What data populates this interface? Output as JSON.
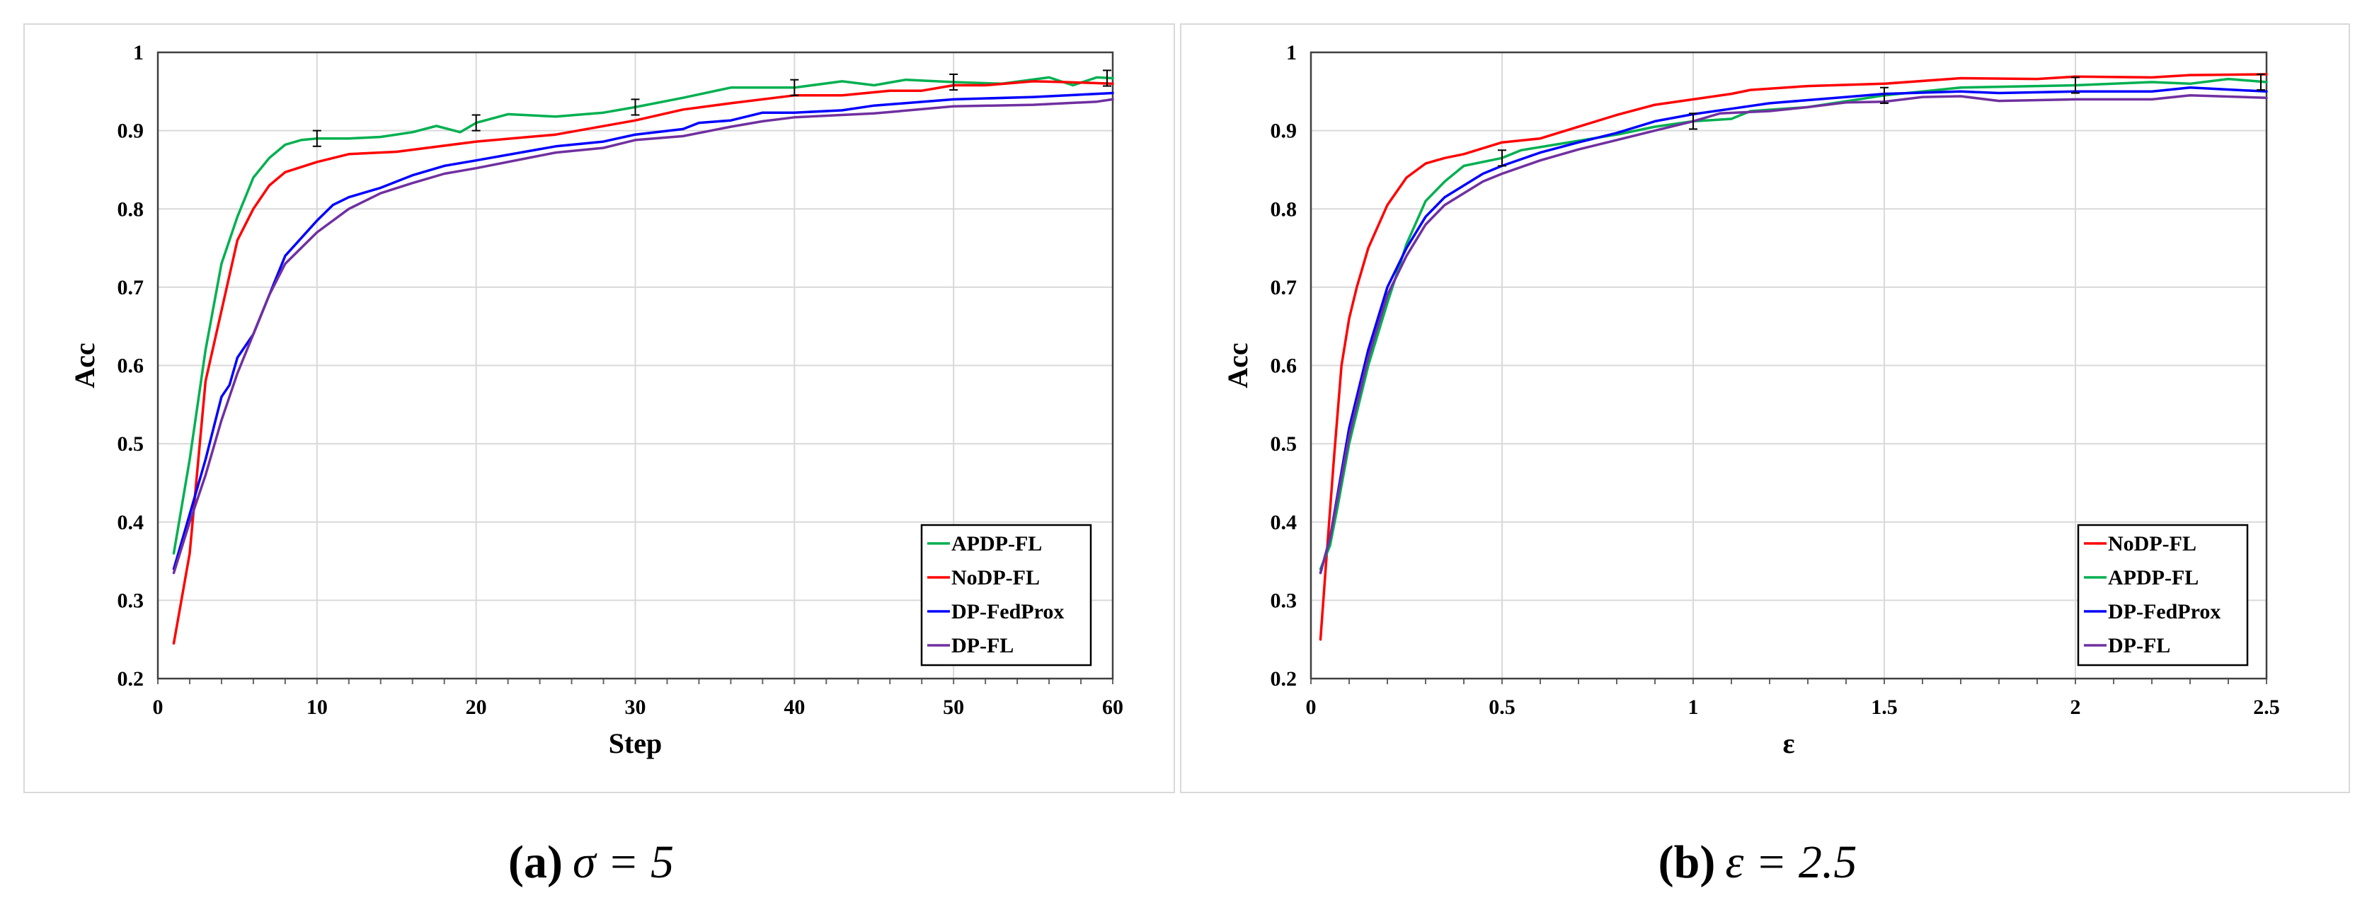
{
  "chart_data": [
    {
      "type": "line",
      "caption_label": "(a)",
      "caption_math": "σ = 5",
      "xlabel": "Step",
      "ylabel": "Acc",
      "xlim": [
        0,
        60
      ],
      "ylim": [
        0.2,
        1
      ],
      "xticks": [
        "0",
        "10",
        "20",
        "30",
        "40",
        "50",
        "60"
      ],
      "yticks": [
        "0.2",
        "0.3",
        "0.4",
        "0.5",
        "0.6",
        "0.7",
        "0.8",
        "0.9",
        "1"
      ],
      "grid": true,
      "legend_position": "bottom-right",
      "errorbars": {
        "series": "APDP-FL",
        "x": [
          10,
          20,
          30,
          40,
          50,
          60
        ],
        "err": 0.01
      },
      "series": [
        {
          "name": "APDP-FL",
          "color": "#00b050",
          "x": [
            1,
            2,
            3,
            4,
            5,
            6,
            7,
            8,
            9,
            10,
            12,
            14,
            16,
            17.5,
            19,
            20,
            22,
            25,
            28,
            30,
            33,
            36,
            40,
            43,
            45,
            47,
            50,
            53,
            56,
            57.5,
            59,
            60
          ],
          "y": [
            0.36,
            0.48,
            0.62,
            0.73,
            0.79,
            0.84,
            0.865,
            0.882,
            0.888,
            0.89,
            0.89,
            0.892,
            0.898,
            0.906,
            0.898,
            0.91,
            0.921,
            0.918,
            0.923,
            0.93,
            0.942,
            0.955,
            0.955,
            0.963,
            0.958,
            0.965,
            0.962,
            0.96,
            0.968,
            0.958,
            0.968,
            0.967
          ]
        },
        {
          "name": "NoDP-FL",
          "color": "#ff0000",
          "x": [
            1,
            2,
            3,
            4,
            5,
            6,
            7,
            8,
            10,
            12,
            15,
            20,
            25,
            30,
            33,
            36,
            40,
            43,
            46,
            48,
            50,
            52,
            55,
            57,
            60
          ],
          "y": [
            0.245,
            0.36,
            0.58,
            0.67,
            0.76,
            0.8,
            0.83,
            0.847,
            0.86,
            0.87,
            0.873,
            0.886,
            0.895,
            0.913,
            0.927,
            0.935,
            0.945,
            0.945,
            0.951,
            0.951,
            0.958,
            0.958,
            0.963,
            0.962,
            0.96
          ]
        },
        {
          "name": "DP-FedProx",
          "color": "#0000ff",
          "x": [
            1,
            2,
            3,
            4,
            4.5,
            5,
            6,
            7,
            8,
            10,
            11,
            12,
            14,
            16,
            18,
            20,
            25,
            28,
            30,
            33,
            34,
            36,
            38,
            40,
            43,
            45,
            50,
            55,
            60
          ],
          "y": [
            0.34,
            0.41,
            0.48,
            0.56,
            0.575,
            0.61,
            0.64,
            0.69,
            0.74,
            0.785,
            0.805,
            0.815,
            0.827,
            0.843,
            0.855,
            0.862,
            0.88,
            0.886,
            0.895,
            0.902,
            0.91,
            0.913,
            0.923,
            0.923,
            0.926,
            0.932,
            0.94,
            0.943,
            0.948
          ]
        },
        {
          "name": "DP-FL",
          "color": "#7030a0",
          "x": [
            1,
            2,
            3,
            4,
            5,
            6,
            7,
            8,
            10,
            12,
            14,
            16,
            18,
            20,
            25,
            28,
            30,
            33,
            36,
            38,
            40,
            45,
            50,
            55,
            59,
            60
          ],
          "y": [
            0.335,
            0.4,
            0.46,
            0.53,
            0.59,
            0.64,
            0.69,
            0.73,
            0.77,
            0.8,
            0.82,
            0.833,
            0.845,
            0.852,
            0.872,
            0.878,
            0.888,
            0.893,
            0.905,
            0.912,
            0.917,
            0.922,
            0.931,
            0.933,
            0.937,
            0.94
          ]
        }
      ]
    },
    {
      "type": "line",
      "caption_label": "(b)",
      "caption_math": "ε = 2.5",
      "xlabel": "ε",
      "ylabel": "Acc",
      "xlim": [
        0,
        2.5
      ],
      "ylim": [
        0.2,
        1
      ],
      "xticks": [
        "0",
        "0.5",
        "1",
        "1.5",
        "2",
        "2.5"
      ],
      "yticks": [
        "0.2",
        "0.3",
        "0.4",
        "0.5",
        "0.6",
        "0.7",
        "0.8",
        "0.9",
        "1"
      ],
      "grid": true,
      "legend_position": "bottom-right",
      "errorbars": {
        "series": "APDP-FL",
        "x": [
          0.5,
          1,
          1.5,
          2,
          2.5
        ],
        "err": 0.01
      },
      "series": [
        {
          "name": "NoDP-FL",
          "color": "#ff0000",
          "x": [
            0.025,
            0.04,
            0.06,
            0.08,
            0.1,
            0.12,
            0.15,
            0.2,
            0.25,
            0.3,
            0.35,
            0.4,
            0.5,
            0.6,
            0.7,
            0.8,
            0.9,
            1.0,
            1.1,
            1.15,
            1.3,
            1.5,
            1.7,
            1.9,
            2.0,
            2.2,
            2.3,
            2.5
          ],
          "y": [
            0.25,
            0.35,
            0.48,
            0.6,
            0.66,
            0.7,
            0.75,
            0.805,
            0.84,
            0.858,
            0.865,
            0.87,
            0.885,
            0.89,
            0.905,
            0.92,
            0.933,
            0.94,
            0.947,
            0.952,
            0.957,
            0.96,
            0.967,
            0.966,
            0.969,
            0.968,
            0.971,
            0.972
          ]
        },
        {
          "name": "APDP-FL",
          "color": "#00b050",
          "x": [
            0.025,
            0.05,
            0.07,
            0.1,
            0.15,
            0.2,
            0.25,
            0.3,
            0.35,
            0.4,
            0.5,
            0.55,
            0.7,
            0.8,
            0.9,
            1.0,
            1.1,
            1.15,
            1.3,
            1.5,
            1.7,
            2.0,
            2.2,
            2.3,
            2.4,
            2.5
          ],
          "y": [
            0.34,
            0.37,
            0.42,
            0.5,
            0.6,
            0.68,
            0.755,
            0.81,
            0.835,
            0.855,
            0.865,
            0.875,
            0.887,
            0.895,
            0.905,
            0.912,
            0.915,
            0.925,
            0.93,
            0.945,
            0.955,
            0.958,
            0.962,
            0.96,
            0.966,
            0.962
          ]
        },
        {
          "name": "DP-FedProx",
          "color": "#0000ff",
          "x": [
            0.025,
            0.05,
            0.1,
            0.15,
            0.2,
            0.25,
            0.3,
            0.35,
            0.45,
            0.5,
            0.6,
            0.7,
            0.8,
            0.9,
            1.0,
            1.1,
            1.2,
            1.4,
            1.5,
            1.7,
            1.8,
            2.0,
            2.2,
            2.3,
            2.5
          ],
          "y": [
            0.335,
            0.38,
            0.52,
            0.62,
            0.7,
            0.75,
            0.79,
            0.815,
            0.845,
            0.855,
            0.872,
            0.885,
            0.897,
            0.912,
            0.921,
            0.928,
            0.935,
            0.943,
            0.947,
            0.95,
            0.948,
            0.95,
            0.95,
            0.955,
            0.95
          ]
        },
        {
          "name": "DP-FL",
          "color": "#7030a0",
          "x": [
            0.025,
            0.05,
            0.1,
            0.15,
            0.2,
            0.25,
            0.3,
            0.35,
            0.45,
            0.5,
            0.6,
            0.7,
            0.8,
            0.9,
            1.0,
            1.07,
            1.2,
            1.3,
            1.4,
            1.5,
            1.6,
            1.7,
            1.8,
            2.0,
            2.2,
            2.3,
            2.5
          ],
          "y": [
            0.335,
            0.38,
            0.51,
            0.61,
            0.69,
            0.74,
            0.78,
            0.805,
            0.835,
            0.845,
            0.862,
            0.876,
            0.888,
            0.9,
            0.912,
            0.922,
            0.925,
            0.93,
            0.936,
            0.937,
            0.943,
            0.944,
            0.938,
            0.94,
            0.94,
            0.945,
            0.942
          ]
        }
      ]
    }
  ]
}
